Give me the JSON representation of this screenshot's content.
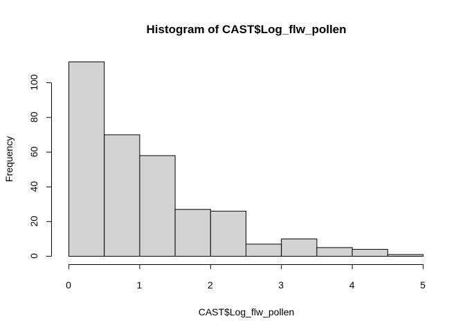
{
  "chart_data": {
    "type": "bar",
    "title": "Histogram of CAST$Log_flw_pollen",
    "xlabel": "CAST$Log_flw_pollen",
    "ylabel": "Frequency",
    "bin_edges": [
      0,
      0.5,
      1,
      1.5,
      2,
      2.5,
      3,
      3.5,
      4,
      4.5,
      5
    ],
    "values": [
      112,
      70,
      58,
      27,
      26,
      7,
      10,
      5,
      4,
      1
    ],
    "xlim": [
      0,
      5
    ],
    "ylim": [
      0,
      112
    ],
    "x_ticks": [
      0,
      1,
      2,
      3,
      4,
      5
    ],
    "x_tick_labels": [
      "0",
      "1",
      "2",
      "3",
      "4",
      "5"
    ],
    "y_ticks": [
      0,
      20,
      40,
      60,
      80,
      100
    ],
    "y_tick_labels": [
      "0",
      "20",
      "40",
      "60",
      "80",
      "100"
    ],
    "grid": false,
    "bar_fill": "#d3d3d3",
    "bar_stroke": "#000000"
  }
}
